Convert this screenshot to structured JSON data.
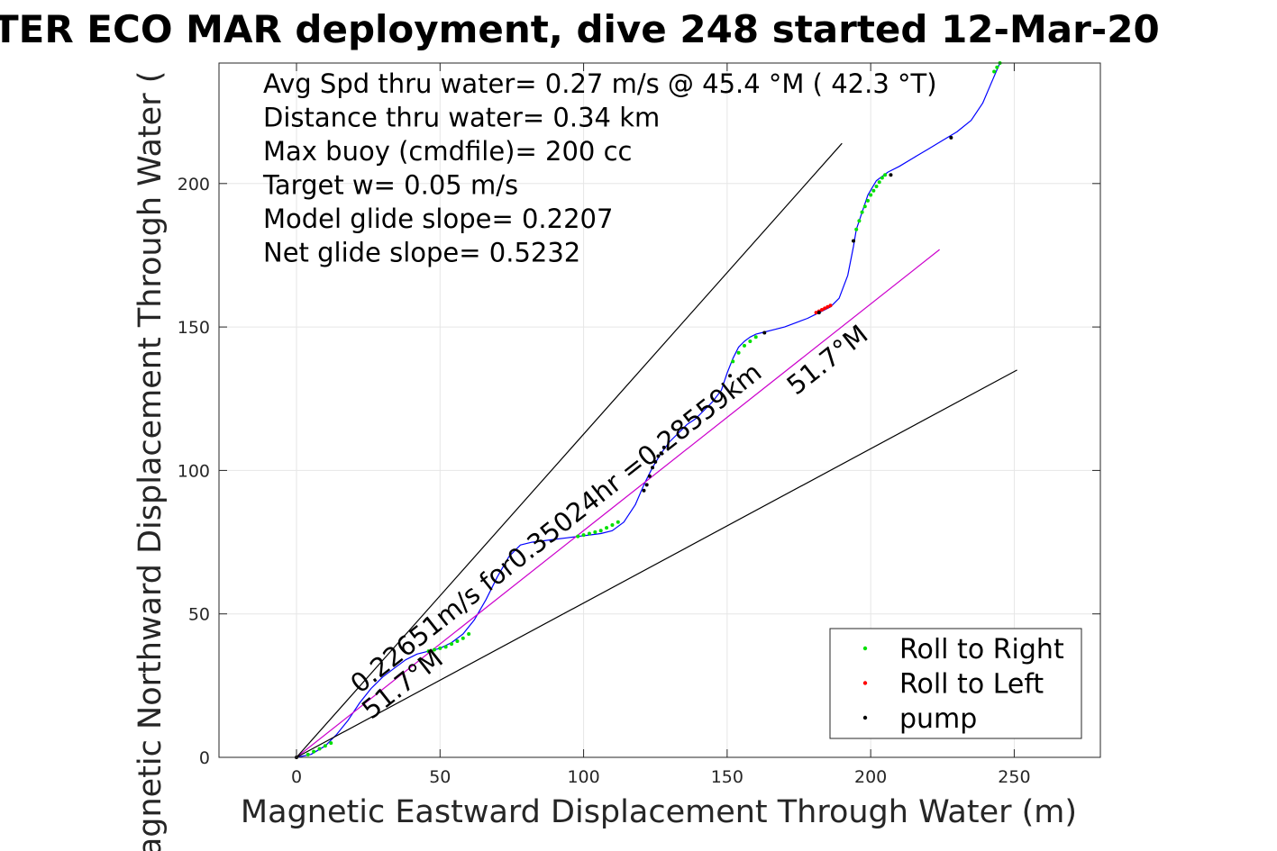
{
  "chart_data": {
    "type": "line",
    "title": "TER ECO MAR deployment, dive 248 started 12-Mar-20",
    "xlabel": "Magnetic Eastward Displacement Through Water (m)",
    "ylabel": "Magnetic Northward Displacement Through Water (",
    "xlim": [
      -27,
      280
    ],
    "ylim": [
      0,
      242
    ],
    "x_ticks": [
      0,
      50,
      100,
      150,
      200,
      250
    ],
    "y_ticks": [
      0,
      50,
      100,
      150,
      200
    ],
    "grid": true,
    "legend_position": "bottom-right",
    "info_lines": [
      "Avg Spd thru water=  0.27 m/s @  45.4 °M ( 42.3 °T)",
      "Distance thru water=  0.34 km",
      "Max buoy (cmdfile)= 200 cc",
      "Target w= 0.05 m/s",
      "Model glide slope= 0.2207",
      "Net glide slope= 0.5232"
    ],
    "annotations": [
      {
        "text": "0.22651m/s for0.35024hr =0.28559km",
        "x": 22,
        "y": 22,
        "angle_deg": 38.3
      },
      {
        "text": "51.7°M",
        "x": 26,
        "y": 13,
        "angle_deg": 38.3
      },
      {
        "text": "51.7°M",
        "x": 174,
        "y": 126,
        "angle_deg": 38.3
      }
    ],
    "series": [
      {
        "name": "",
        "role": "track",
        "color": "#0000ff",
        "x": [
          0,
          5,
          10,
          14,
          18,
          22,
          26,
          30,
          34,
          38,
          42,
          46,
          50,
          54,
          58,
          62,
          66,
          70,
          74,
          78,
          82,
          86,
          90,
          94,
          98,
          102,
          106,
          110,
          114,
          118,
          121,
          124,
          127,
          130,
          133,
          136,
          139,
          142,
          145,
          148,
          150,
          152,
          154,
          156,
          158,
          160,
          162,
          166,
          170,
          174,
          178,
          182,
          186,
          189,
          192,
          194,
          195,
          197,
          199,
          202,
          206,
          210,
          215,
          220,
          225,
          230,
          235,
          239,
          242,
          245
        ],
        "y": [
          0,
          1,
          4,
          8,
          13,
          19,
          24,
          28,
          31,
          34,
          36,
          37,
          38,
          40,
          43,
          48,
          55,
          63,
          70,
          74,
          75,
          75.5,
          76,
          76.5,
          77,
          77.5,
          78,
          79,
          82,
          88,
          95,
          101,
          106,
          110,
          113,
          116,
          118,
          121,
          124,
          128,
          134,
          139,
          143,
          145,
          146.5,
          147.5,
          148,
          149,
          150,
          151.5,
          153,
          155,
          157,
          160,
          168,
          178,
          184,
          190,
          196,
          201,
          204,
          206,
          209,
          212,
          215,
          218,
          222,
          228,
          235,
          242
        ]
      },
      {
        "name": "",
        "role": "straight-line fit",
        "color": "#cc00cc",
        "x": [
          0,
          224
        ],
        "y": [
          0,
          177
        ]
      },
      {
        "name": "",
        "role": "upper envelope",
        "color": "#000000",
        "x": [
          0,
          190
        ],
        "y": [
          0,
          214
        ]
      },
      {
        "name": "",
        "role": "lower envelope",
        "color": "#000000",
        "x": [
          0,
          251
        ],
        "y": [
          0,
          135
        ]
      }
    ],
    "markers": {
      "roll_right": {
        "color": "#00e000",
        "x": [
          4,
          6,
          8,
          10,
          12,
          46,
          48,
          50,
          52,
          54,
          56,
          58,
          60,
          98,
          100,
          102,
          104,
          106,
          108,
          110,
          112,
          152,
          154,
          156,
          158,
          160,
          195,
          196,
          197,
          198,
          199,
          200,
          201,
          202,
          203,
          204,
          205,
          243,
          244,
          245
        ],
        "y": [
          1,
          2,
          3,
          4,
          5,
          37,
          37.5,
          38,
          38.5,
          39.5,
          40.5,
          41.5,
          43,
          77,
          77.5,
          78,
          78.5,
          79,
          80,
          81,
          82,
          138,
          141,
          143.5,
          145,
          146.5,
          184,
          187,
          190,
          192,
          194,
          196,
          197.5,
          199,
          200.5,
          202,
          203,
          239,
          240.5,
          242
        ]
      },
      "roll_left": {
        "color": "#ff0000",
        "x": [
          181,
          182,
          183,
          184,
          185,
          186
        ],
        "y": [
          155,
          155.5,
          156,
          156.5,
          157,
          157.5
        ]
      },
      "pump": {
        "color": "#000000",
        "x": [
          0,
          121,
          122,
          123,
          124,
          125,
          126,
          127,
          128,
          151,
          163,
          182,
          194,
          207,
          228
        ],
        "y": [
          0,
          93,
          95,
          98,
          101,
          103,
          105,
          106,
          108,
          133,
          148,
          155,
          180,
          203,
          216
        ]
      }
    },
    "legend": [
      {
        "label": "Roll to Right",
        "color": "#00e000"
      },
      {
        "label": "Roll to Left",
        "color": "#ff0000"
      },
      {
        "label": "pump",
        "color": "#000000"
      }
    ]
  }
}
